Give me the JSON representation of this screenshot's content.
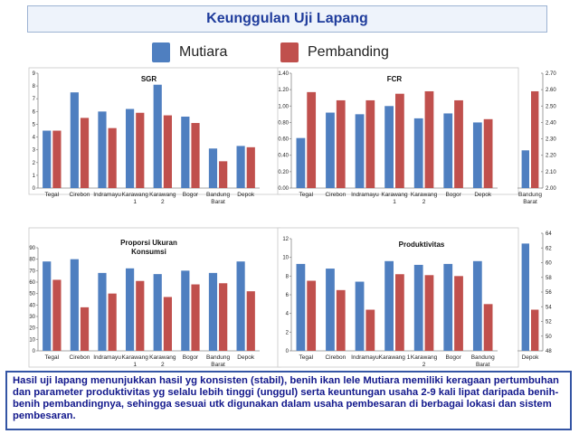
{
  "header": {
    "title": "Keunggulan Uji Lapang"
  },
  "legend": {
    "series_a": "Mutiara",
    "series_b": "Pembanding"
  },
  "colors": {
    "mutiara": "#4f7fc0",
    "pembanding": "#c0504d"
  },
  "note": "Hasil uji lapang menunjukkan hasil yg konsisten (stabil), benih ikan lele Mutiara memiliki keragaan pertumbuhan dan parameter produktivitas yg selalu lebih tinggi (unggul) serta keuntungan usaha 2-9 kali lipat daripada benih-benih pembandingnya, sehingga sesuai utk digunakan dalam usaha pembesaran di berbagai lokasi dan sistem pembesaran.",
  "chart_data": [
    {
      "type": "bar",
      "title": "SGR",
      "categories": [
        [
          "Tegal"
        ],
        [
          "Cirebon"
        ],
        [
          "Indramayu"
        ],
        [
          "Karawang",
          "1"
        ],
        [
          "Karawang",
          "2"
        ],
        [
          "Bogor"
        ],
        [
          "Bandung",
          "Barat"
        ],
        [
          "Depok"
        ]
      ],
      "series": [
        {
          "name": "Mutiara",
          "values": [
            4.5,
            7.5,
            6.0,
            6.2,
            8.1,
            5.6,
            3.1,
            3.3
          ]
        },
        {
          "name": "Pembanding",
          "values": [
            4.5,
            5.5,
            4.7,
            5.9,
            5.7,
            5.1,
            2.1,
            3.2
          ]
        }
      ],
      "ylim": [
        0,
        9
      ],
      "ticks": [
        "0",
        "1",
        "2",
        "3",
        "4",
        "5",
        "6",
        "7",
        "8",
        "9"
      ]
    },
    {
      "type": "bar",
      "title": "FCR",
      "categories": [
        [
          "Tegal"
        ],
        [
          "Cirebon"
        ],
        [
          "Indramayu"
        ],
        [
          "Karawang",
          "1"
        ],
        [
          "Karawang",
          "2"
        ],
        [
          "Bogor"
        ],
        [
          "Depok"
        ]
      ],
      "series": [
        {
          "name": "Mutiara",
          "values": [
            0.61,
            0.92,
            0.9,
            1.0,
            0.85,
            0.91,
            0.8
          ]
        },
        {
          "name": "Pembanding",
          "values": [
            1.17,
            1.07,
            1.07,
            1.15,
            1.18,
            1.07,
            0.84
          ]
        }
      ],
      "ylim": [
        0,
        1.4
      ],
      "ticks": [
        "0.00",
        "0.20",
        "0.40",
        "0.60",
        "0.80",
        "1.00",
        "1.20",
        "1.40"
      ]
    },
    {
      "type": "bar",
      "title": "",
      "categories": [
        [
          "Bandung",
          "Barat"
        ]
      ],
      "series": [
        {
          "name": "Mutiara",
          "values": [
            2.23
          ]
        },
        {
          "name": "Pembanding",
          "values": [
            2.59
          ]
        }
      ],
      "ylim": [
        2.0,
        2.7
      ],
      "ticks": [
        "2.00",
        "2.10",
        "2.20",
        "2.30",
        "2.40",
        "2.50",
        "2.60",
        "2.70"
      ]
    },
    {
      "type": "bar",
      "title": "Proporsi Ukuran Konsumsi",
      "title_lines": [
        "Proporsi Ukuran",
        "Konsumsi"
      ],
      "categories": [
        [
          "Tegal"
        ],
        [
          "Cirebon"
        ],
        [
          "Indramayu"
        ],
        [
          "Karawang",
          "1"
        ],
        [
          "Karawang",
          "2"
        ],
        [
          "Bogor"
        ],
        [
          "Bandung",
          "Barat"
        ],
        [
          "Depok"
        ]
      ],
      "series": [
        {
          "name": "Mutiara",
          "values": [
            78,
            80,
            68,
            72,
            67,
            70,
            68,
            78
          ]
        },
        {
          "name": "Pembanding",
          "values": [
            62,
            38,
            50,
            61,
            47,
            58,
            59,
            52
          ]
        }
      ],
      "ylim": [
        0,
        90
      ],
      "ticks": [
        "0",
        "10",
        "20",
        "30",
        "40",
        "50",
        "60",
        "70",
        "80",
        "90"
      ]
    },
    {
      "type": "bar",
      "title": "Produktivitas",
      "categories": [
        [
          "Tegal"
        ],
        [
          "Cirebon"
        ],
        [
          "Indramayu"
        ],
        [
          "Karawang 1"
        ],
        [
          "Karawang",
          "2"
        ],
        [
          "Bogor"
        ],
        [
          "Bandung",
          "Barat"
        ]
      ],
      "series": [
        {
          "name": "Mutiara",
          "values": [
            9.3,
            8.8,
            7.4,
            9.6,
            9.2,
            9.3,
            9.6
          ]
        },
        {
          "name": "Pembanding",
          "values": [
            7.5,
            6.5,
            4.4,
            8.2,
            8.1,
            8.0,
            5.0
          ]
        }
      ],
      "ylim": [
        0,
        12
      ],
      "ticks": [
        "0",
        "2",
        "4",
        "6",
        "8",
        "10",
        "12"
      ]
    },
    {
      "type": "bar",
      "title": "",
      "categories": [
        [
          "Depok"
        ]
      ],
      "series": [
        {
          "name": "Mutiara",
          "values": [
            62.6
          ]
        },
        {
          "name": "Pembanding",
          "values": [
            53.6
          ]
        }
      ],
      "ylim": [
        48,
        64
      ],
      "ticks": [
        "48",
        "50",
        "52",
        "54",
        "56",
        "58",
        "60",
        "62",
        "64"
      ]
    }
  ]
}
